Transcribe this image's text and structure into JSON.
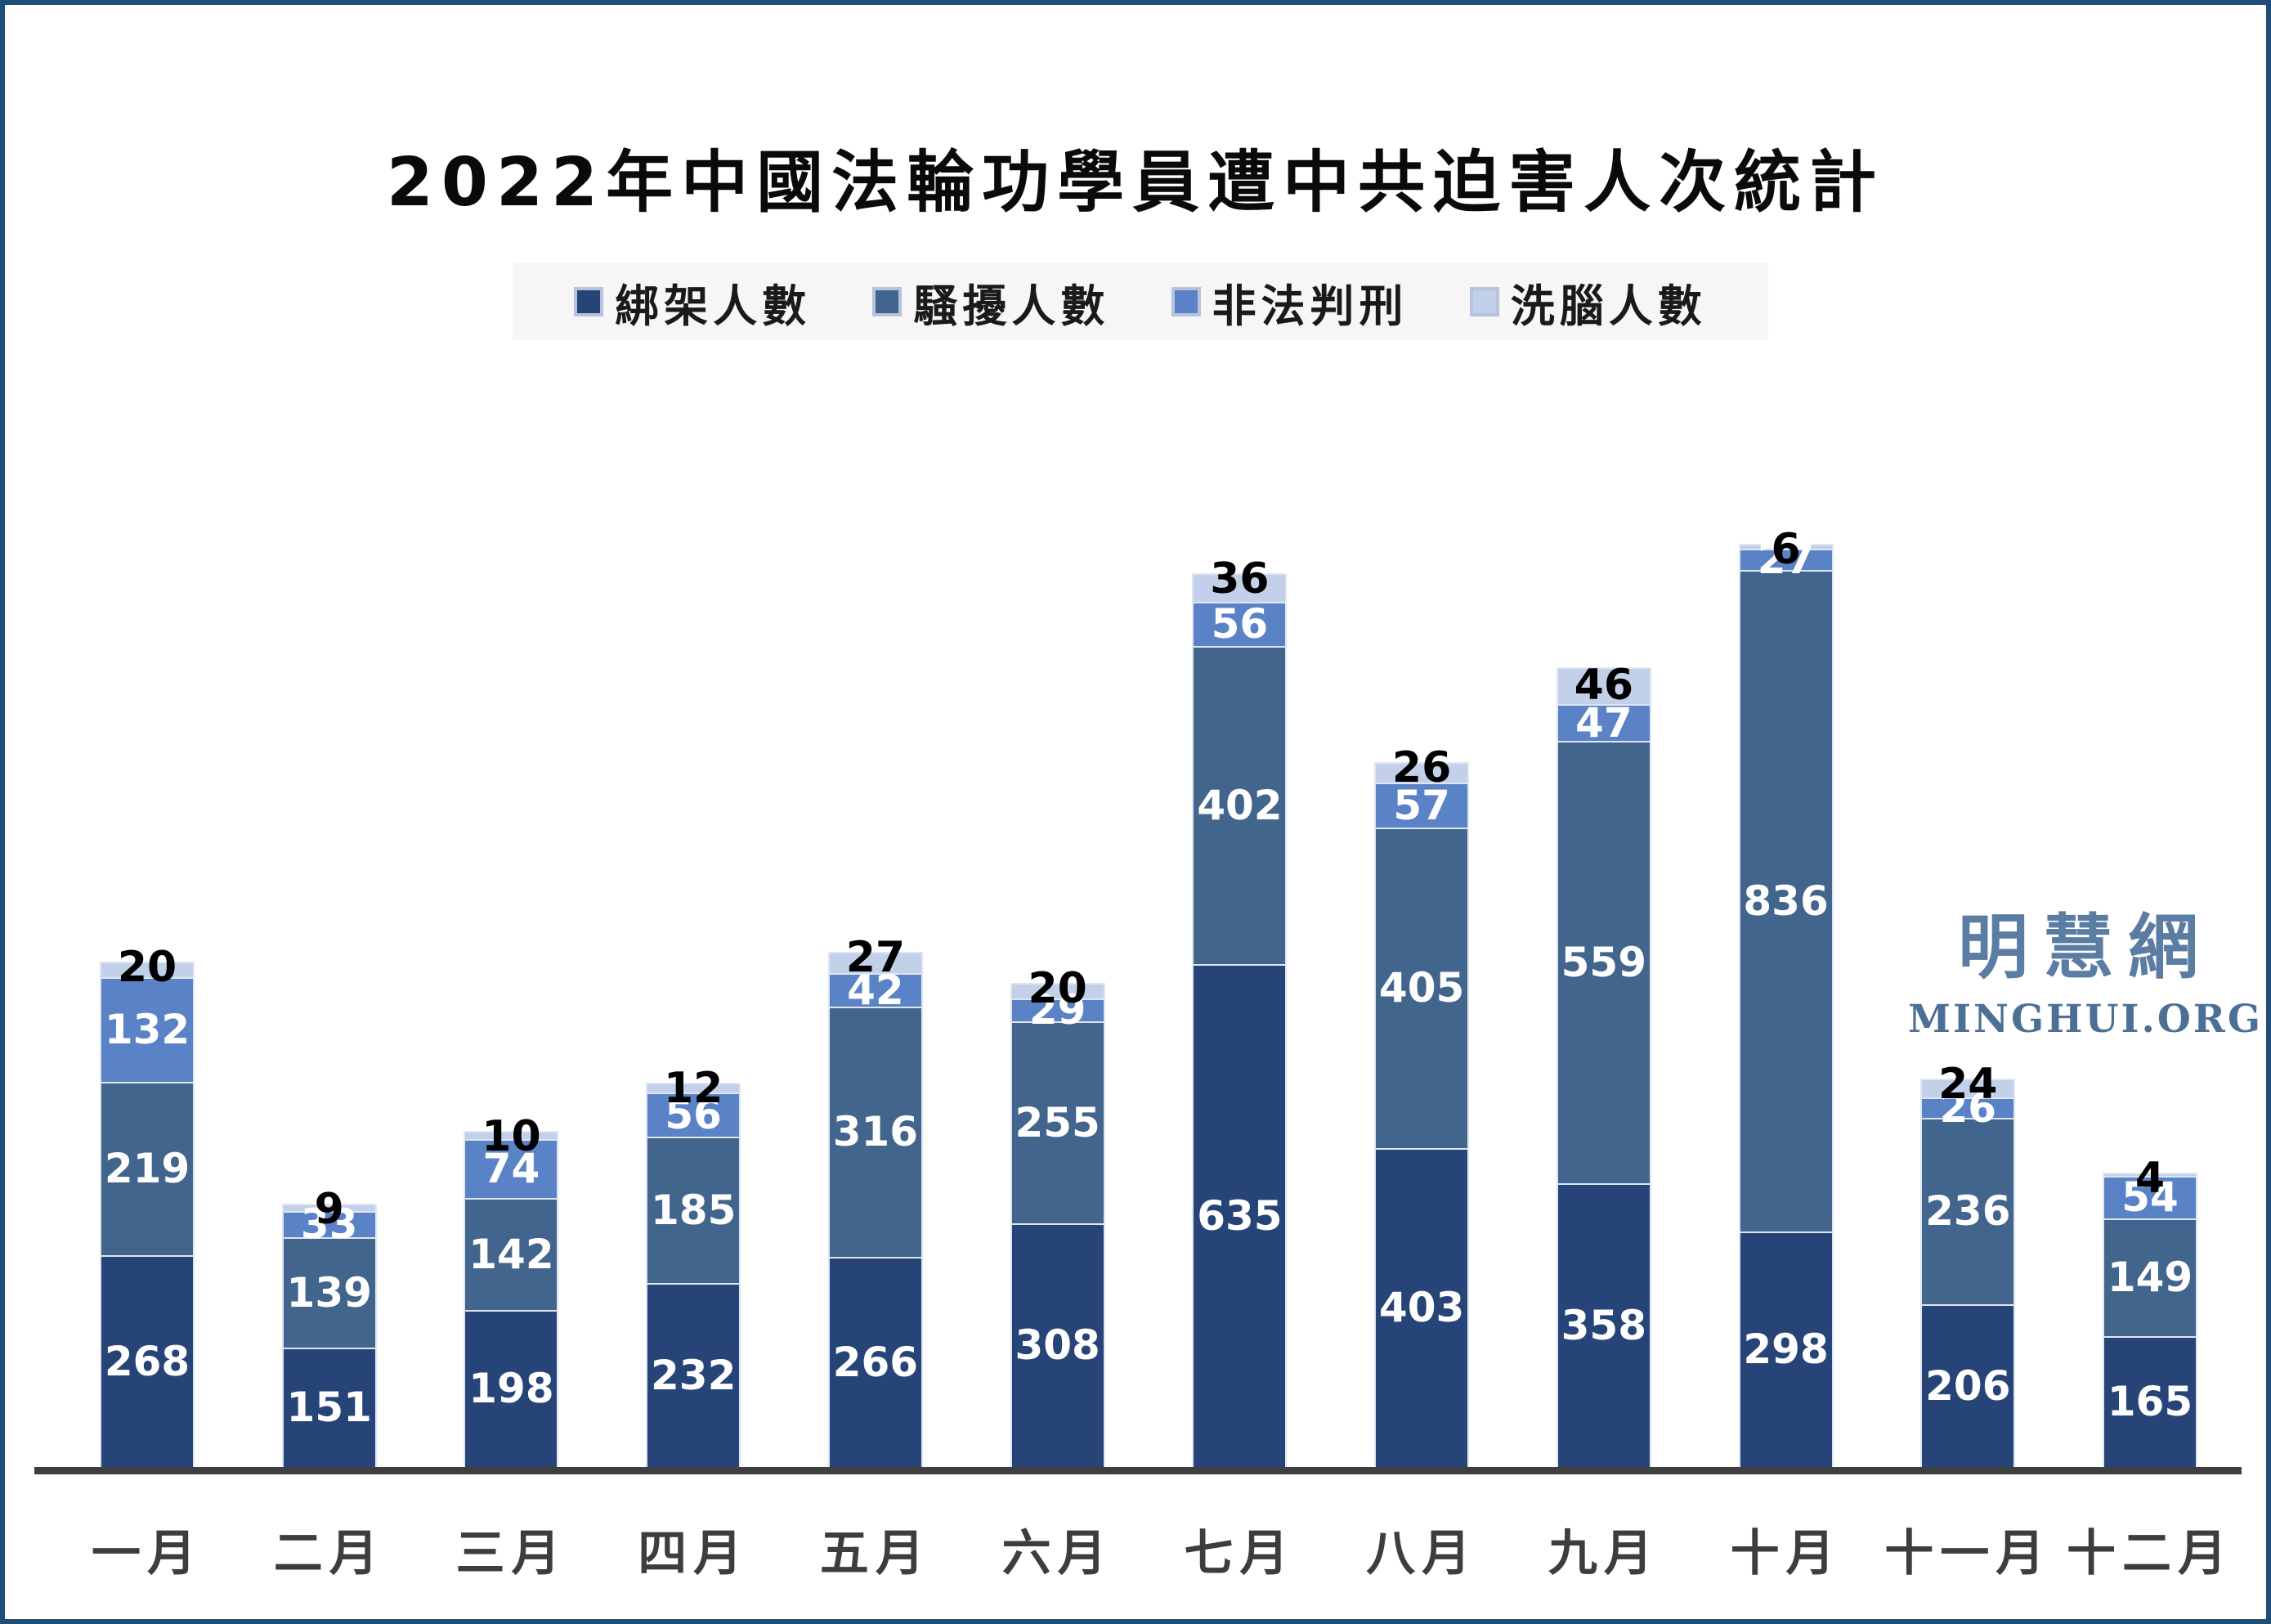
{
  "title": "2022年中國法輪功學員遭中共迫害人次統計",
  "frame_color": "#1F4E79",
  "background_color": "#ffffff",
  "legend": {
    "background": "#f6f6f6",
    "items": [
      {
        "label": "綁架人數",
        "color": "#274478"
      },
      {
        "label": "騷擾人數",
        "color": "#41658C"
      },
      {
        "label": "非法判刑",
        "color": "#5A82C6"
      },
      {
        "label": "洗腦人數",
        "color": "#C3D0EA"
      }
    ]
  },
  "watermark": {
    "cjk": "明慧網",
    "latin": "MINGHUI.ORG",
    "color": "#5b7ca3"
  },
  "chart_data": {
    "type": "bar",
    "stacked": true,
    "grid": false,
    "legend_position": "top",
    "axis_color": "#3F3F3F",
    "categories": [
      "一月",
      "二月",
      "三月",
      "四月",
      "五月",
      "六月",
      "七月",
      "八月",
      "九月",
      "十月",
      "十一月",
      "十二月"
    ],
    "series": [
      {
        "name": "綁架人數",
        "color": "#274478",
        "label_color": "#ffffff",
        "values": [
          268,
          151,
          198,
          232,
          266,
          308,
          635,
          403,
          358,
          298,
          206,
          165
        ]
      },
      {
        "name": "騷擾人數",
        "color": "#41658C",
        "label_color": "#ffffff",
        "values": [
          219,
          139,
          142,
          185,
          316,
          255,
          402,
          405,
          559,
          836,
          236,
          149
        ]
      },
      {
        "name": "非法判刑",
        "color": "#5A82C6",
        "label_color": "#ffffff",
        "values": [
          132,
          33,
          74,
          56,
          42,
          29,
          56,
          57,
          47,
          27,
          26,
          54
        ]
      },
      {
        "name": "洗腦人數",
        "color": "#C3D0EA",
        "label_color": "#000000",
        "values": [
          20,
          9,
          10,
          12,
          27,
          20,
          36,
          26,
          46,
          6,
          24,
          4
        ]
      }
    ],
    "totals": [
      639,
      332,
      424,
      485,
      651,
      612,
      1129,
      891,
      1010,
      1167,
      492,
      372
    ]
  }
}
